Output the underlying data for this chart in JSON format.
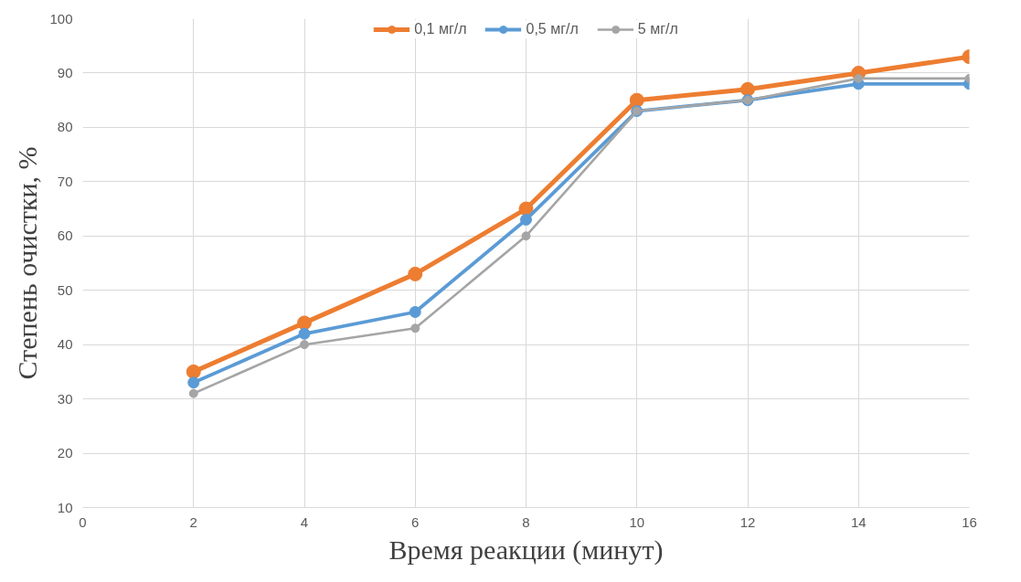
{
  "chart_data": {
    "type": "line",
    "xlabel": "Время реакции (минут)",
    "ylabel": "Степень очистки, %",
    "x": [
      2,
      4,
      6,
      8,
      10,
      12,
      14,
      16
    ],
    "series": [
      {
        "name": "0,1 мг/л",
        "color": "#ed7d31",
        "values": [
          35,
          44,
          53,
          65,
          85,
          87,
          90,
          93
        ]
      },
      {
        "name": "0,5 мг/л",
        "color": "#5b9bd5",
        "values": [
          33,
          42,
          46,
          63,
          83,
          85,
          88,
          88
        ]
      },
      {
        "name": "5 мг/л",
        "color": "#a5a5a5",
        "values": [
          31,
          40,
          43,
          60,
          83,
          85,
          89,
          89
        ]
      }
    ],
    "xlim": [
      0,
      16
    ],
    "xticks": [
      0,
      2,
      4,
      6,
      8,
      10,
      12,
      14,
      16
    ],
    "ylim": [
      10,
      100
    ],
    "yticks": [
      10,
      20,
      30,
      40,
      50,
      60,
      70,
      80,
      90,
      100
    ],
    "grid": true,
    "legend": "top",
    "marker": "circle",
    "line_style": "solid"
  }
}
